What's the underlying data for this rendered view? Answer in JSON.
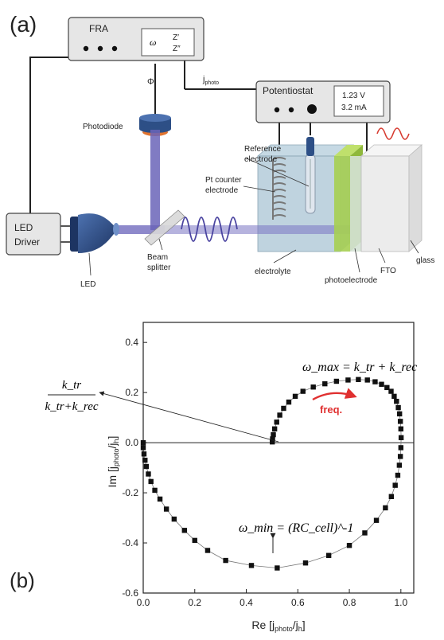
{
  "panels": {
    "a": "(a)",
    "b": "(b)"
  },
  "setup": {
    "fra": {
      "title": "FRA",
      "omega": "ω",
      "z1": "Z′",
      "z2": "Z″"
    },
    "phi": "Φ",
    "jphoto": {
      "main": "j",
      "sub": "photo"
    },
    "potentiostat": {
      "title": "Potentiostat",
      "voltage": "1.23 V",
      "current": "3.2 mA"
    },
    "photodiode": "Photodiode",
    "reference": [
      "Reference",
      "electrode"
    ],
    "pt_counter": [
      "Pt counter",
      "electrode"
    ],
    "led_driver": [
      "LED",
      "Driver"
    ],
    "led": "LED",
    "beam_splitter": [
      "Beam",
      "splitter"
    ],
    "electrolyte": "electrolyte",
    "photoelectrode": "photoelectrode",
    "fto": "FTO",
    "glass": "glass",
    "colors": {
      "device": "#e6e6e6",
      "led": "#2d4f86",
      "beam": "#6a64b8",
      "electrolyte": "#a9c4d4",
      "photoelectrode": "#a6cf52",
      "glass": "#ececec",
      "signal": "#d63a2f"
    }
  },
  "plot": {
    "ylabel": {
      "main": "Im [j",
      "sub1": "photo",
      "mid": "/j",
      "sub2": "h",
      "end": "]"
    },
    "xlabel": {
      "main": "Re [j",
      "sub1": "photo",
      "mid": "/j",
      "sub2": "h",
      "end": "]"
    },
    "xticks": [
      "0.0",
      "0.2",
      "0.4",
      "0.6",
      "0.8",
      "1.0"
    ],
    "yticks": [
      "0.4",
      "0.2",
      "0.0",
      "-0.2",
      "-0.4",
      "-0.6"
    ],
    "wmax": "ω_max = k_tr + k_rec",
    "wmin": "ω_min = (RC_cell)^-1",
    "freq": "freq.",
    "ratio_num": "k_tr",
    "ratio_den": "k_tr+k_rec"
  },
  "chart_data": {
    "type": "scatter",
    "xlabel": "Re [jphoto/jh]",
    "ylabel": "Im [jphoto/jh]",
    "xlim": [
      0,
      1.05
    ],
    "ylim": [
      -0.6,
      0.48
    ],
    "grid": false,
    "series": [
      {
        "x": [
          0.0,
          0.0,
          0.003,
          0.007,
          0.012,
          0.02,
          0.03,
          0.045,
          0.065,
          0.09,
          0.12,
          0.16,
          0.2,
          0.25,
          0.32,
          0.42,
          0.52,
          0.63,
          0.72,
          0.8,
          0.86,
          0.905,
          0.94,
          0.963,
          0.978,
          0.988,
          0.994,
          0.998,
          1.0,
          1.001,
          1.0,
          0.998,
          0.995,
          0.99,
          0.983,
          0.974,
          0.962,
          0.946,
          0.925,
          0.9,
          0.87,
          0.835,
          0.795,
          0.75,
          0.705,
          0.66,
          0.62,
          0.59,
          0.565,
          0.545,
          0.53,
          0.518,
          0.51,
          0.505,
          0.502,
          0.501
        ],
        "y": [
          0.0,
          -0.02,
          -0.045,
          -0.07,
          -0.095,
          -0.125,
          -0.155,
          -0.19,
          -0.225,
          -0.265,
          -0.305,
          -0.35,
          -0.39,
          -0.43,
          -0.47,
          -0.49,
          -0.5,
          -0.48,
          -0.45,
          -0.41,
          -0.36,
          -0.31,
          -0.26,
          -0.215,
          -0.17,
          -0.13,
          -0.09,
          -0.055,
          -0.02,
          0.02,
          0.055,
          0.085,
          0.115,
          0.14,
          0.165,
          0.185,
          0.205,
          0.22,
          0.233,
          0.243,
          0.25,
          0.252,
          0.25,
          0.245,
          0.235,
          0.222,
          0.205,
          0.185,
          0.162,
          0.137,
          0.11,
          0.082,
          0.055,
          0.032,
          0.015,
          0.003
        ]
      }
    ]
  }
}
